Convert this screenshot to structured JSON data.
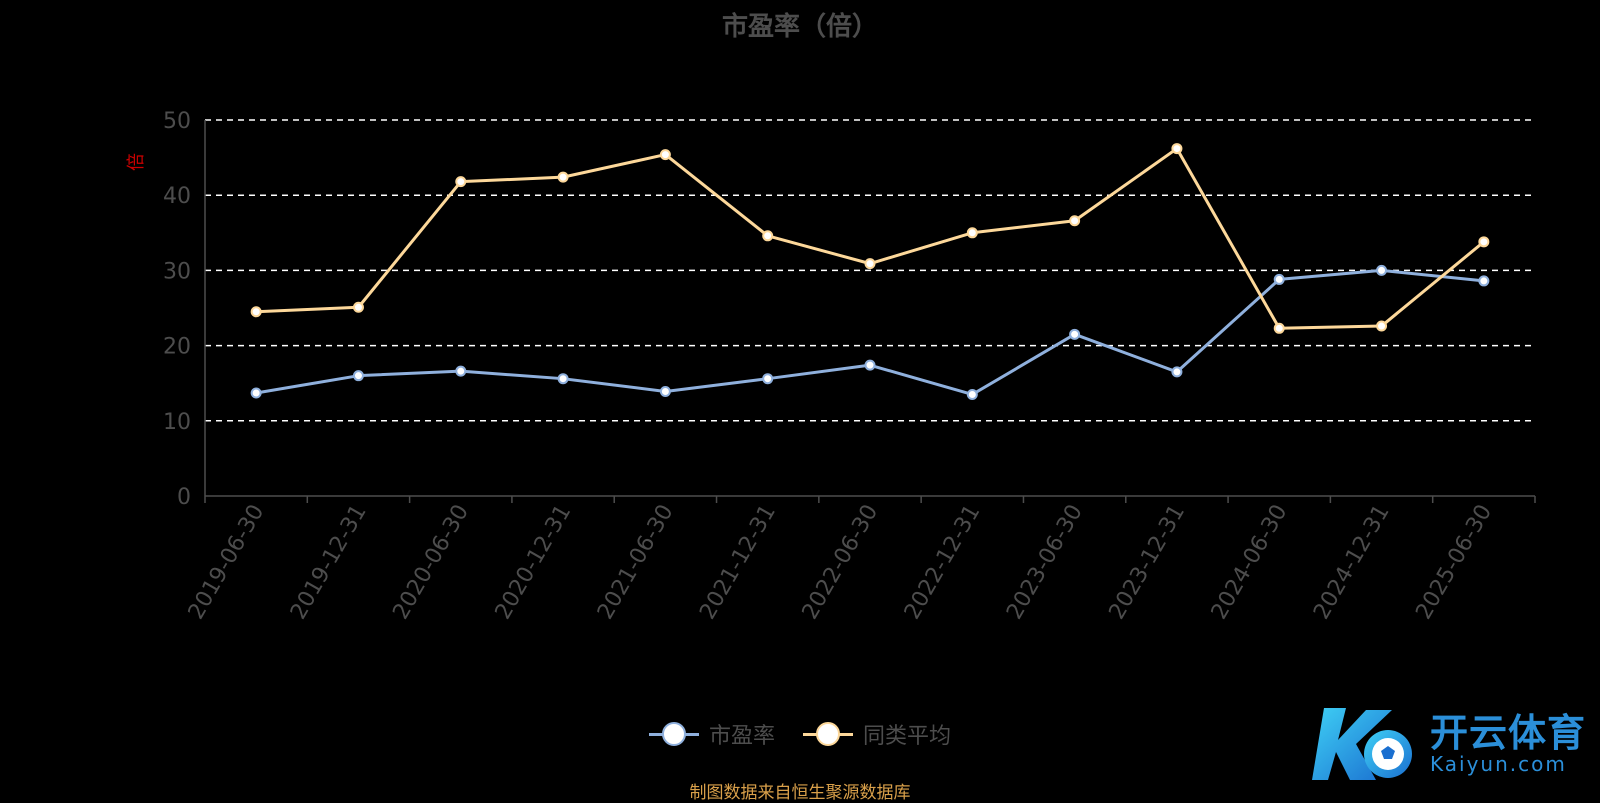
{
  "title": "市盈率（倍）",
  "source_note": "制图数据来自恒生聚源数据库",
  "logo": {
    "cn": "开云体育",
    "en": "Kaiyun.com"
  },
  "chart_data": {
    "type": "line",
    "title": "市盈率（倍）",
    "ylabel": "倍",
    "ylim": [
      0,
      50
    ],
    "yticks": [
      "0",
      "10",
      "20",
      "30",
      "40",
      "50"
    ],
    "grid": true,
    "legend_position": "bottom",
    "categories": [
      "2019-06-30",
      "2019-12-31",
      "2020-06-30",
      "2020-12-31",
      "2021-06-30",
      "2021-12-31",
      "2022-06-30",
      "2022-12-31",
      "2023-06-30",
      "2023-12-31",
      "2024-06-30",
      "2024-12-31",
      "2025-06-30"
    ],
    "series": [
      {
        "name": "市盈率",
        "color": "#8fb0dd",
        "values": [
          13.7,
          16.0,
          16.6,
          15.6,
          13.9,
          15.6,
          17.4,
          13.5,
          21.5,
          16.5,
          28.8,
          30.0,
          28.6
        ]
      },
      {
        "name": "同类平均",
        "color": "#fdd89a",
        "values": [
          24.5,
          25.1,
          41.8,
          42.4,
          45.4,
          34.6,
          30.9,
          35.0,
          36.6,
          46.2,
          22.3,
          22.6,
          33.8
        ]
      }
    ]
  },
  "colors": {
    "background": "#000000",
    "axis_text": "#4d4d4d",
    "ylabel": "#cc0000",
    "grid": "#ffffff",
    "source": "#d9a04a"
  }
}
